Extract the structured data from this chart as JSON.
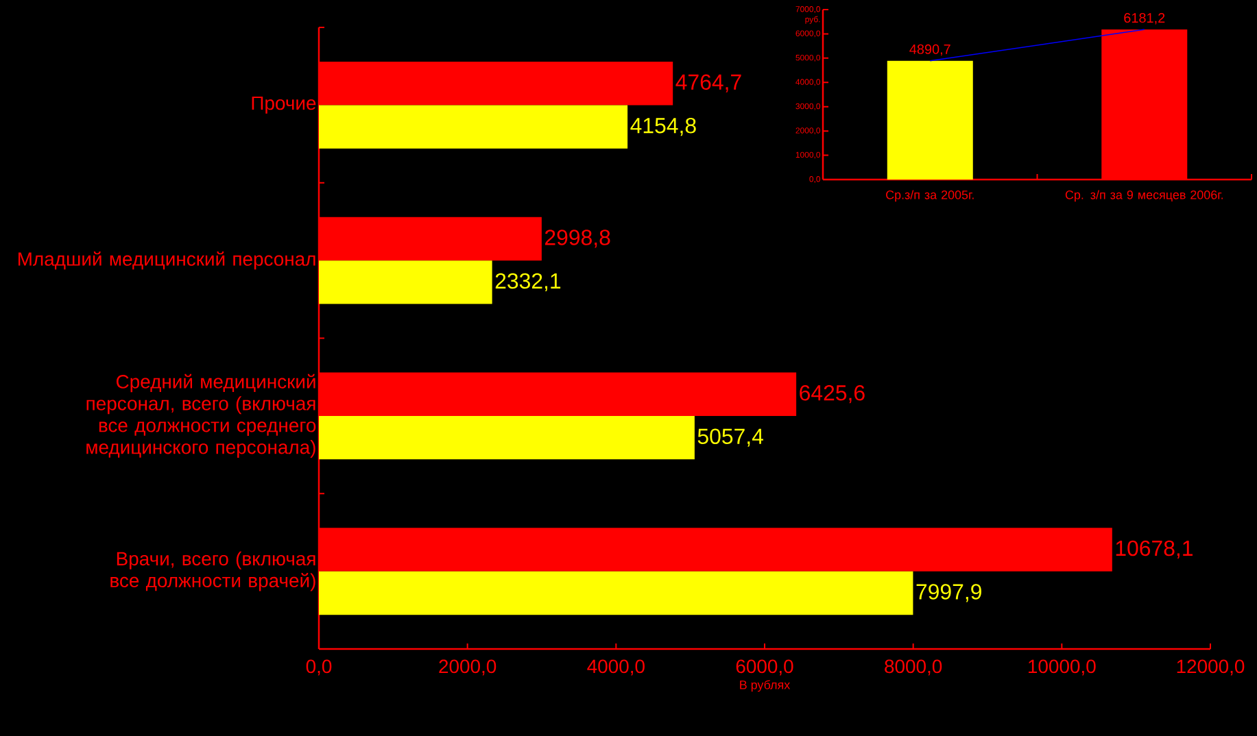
{
  "chart_data": [
    {
      "type": "bar",
      "orientation": "horizontal",
      "categories": [
        "Прочие",
        "Младший медицинский персонал",
        "Средний медицинский персонал, всего (включая все должности среднего медицинского персонала)",
        "Врачи, всего (включая все должности врачей)"
      ],
      "series": [
        {
          "color": "#ff0000",
          "values": [
            4764.7,
            2998.8,
            6425.6,
            10678.1
          ],
          "value_labels": [
            "4764,7",
            "2998,8",
            "6425,6",
            "10678,1"
          ]
        },
        {
          "color": "#ffff00",
          "values": [
            4154.8,
            2332.1,
            5057.4,
            7997.9
          ],
          "value_labels": [
            "4154,8",
            "2332,1",
            "5057,4",
            "7997,9"
          ]
        }
      ],
      "xlim": [
        0,
        12000
      ],
      "xticks": [
        {
          "value": 0,
          "label": "0,0"
        },
        {
          "value": 2000,
          "label": "2000,0"
        },
        {
          "value": 4000,
          "label": "4000,0"
        },
        {
          "value": 6000,
          "label": "6000,0"
        },
        {
          "value": 8000,
          "label": "8000,0"
        },
        {
          "value": 10000,
          "label": "10000,0"
        },
        {
          "value": 12000,
          "label": "12000,0"
        }
      ],
      "xlabel": "В рублях"
    },
    {
      "type": "bar",
      "categories": [
        "Ср.з/п за 2005г.",
        "Ср. з/п за 9 месяцев 2006г."
      ],
      "series": [
        {
          "colors": [
            "#ffff00",
            "#ff0000"
          ],
          "values": [
            4890.7,
            6181.2
          ],
          "value_labels": [
            "4890,7",
            "6181,2"
          ]
        },
        {
          "type": "line",
          "color": "#0000ff",
          "values": [
            4890.7,
            6181.2
          ]
        }
      ],
      "ylim": [
        0,
        7000
      ],
      "yticks": [
        {
          "value": 0,
          "label": "0,0"
        },
        {
          "value": 1000,
          "label": "1000,0"
        },
        {
          "value": 2000,
          "label": "2000,0"
        },
        {
          "value": 3000,
          "label": "3000,0"
        },
        {
          "value": 4000,
          "label": "4000,0"
        },
        {
          "value": 5000,
          "label": "5000,0"
        },
        {
          "value": 6000,
          "label": "6000,0"
        },
        {
          "value": 7000,
          "label": "7000,0"
        }
      ],
      "ylabel": "руб."
    }
  ]
}
